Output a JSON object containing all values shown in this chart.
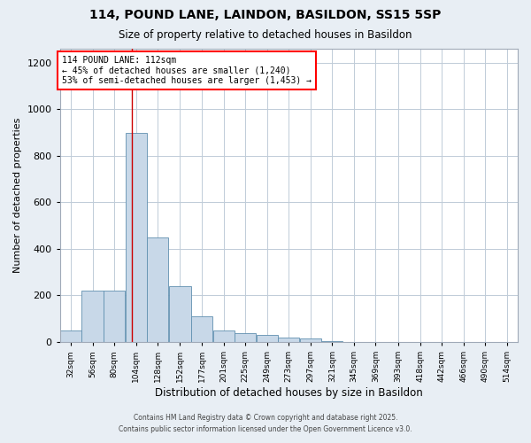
{
  "title": "114, POUND LANE, LAINDON, BASILDON, SS15 5SP",
  "subtitle": "Size of property relative to detached houses in Basildon",
  "xlabel": "Distribution of detached houses by size in Basildon",
  "ylabel": "Number of detached properties",
  "footnote1": "Contains HM Land Registry data © Crown copyright and database right 2025.",
  "footnote2": "Contains public sector information licensed under the Open Government Licence v3.0.",
  "annotation_line1": "114 POUND LANE: 112sqm",
  "annotation_line2": "← 45% of detached houses are smaller (1,240)",
  "annotation_line3": "53% of semi-detached houses are larger (1,453) →",
  "bar_color": "#c8d8e8",
  "bar_edge_color": "#6090b0",
  "red_line_x": 112,
  "categories": [
    "32sqm",
    "56sqm",
    "80sqm",
    "104sqm",
    "128sqm",
    "152sqm",
    "177sqm",
    "201sqm",
    "225sqm",
    "249sqm",
    "273sqm",
    "297sqm",
    "321sqm",
    "345sqm",
    "369sqm",
    "393sqm",
    "418sqm",
    "442sqm",
    "466sqm",
    "490sqm",
    "514sqm"
  ],
  "bin_edges": [
    32,
    56,
    80,
    104,
    128,
    152,
    177,
    201,
    225,
    249,
    273,
    297,
    321,
    345,
    369,
    393,
    418,
    442,
    466,
    490,
    514
  ],
  "values": [
    50,
    220,
    220,
    900,
    450,
    240,
    110,
    50,
    40,
    30,
    20,
    15,
    5,
    2,
    1,
    1,
    0,
    0,
    0,
    0,
    0
  ],
  "ylim": [
    0,
    1260
  ],
  "yticks": [
    0,
    200,
    400,
    600,
    800,
    1000,
    1200
  ],
  "background_color": "#e8eef4",
  "plot_background": "#ffffff",
  "grid_color": "#c0ccd8"
}
